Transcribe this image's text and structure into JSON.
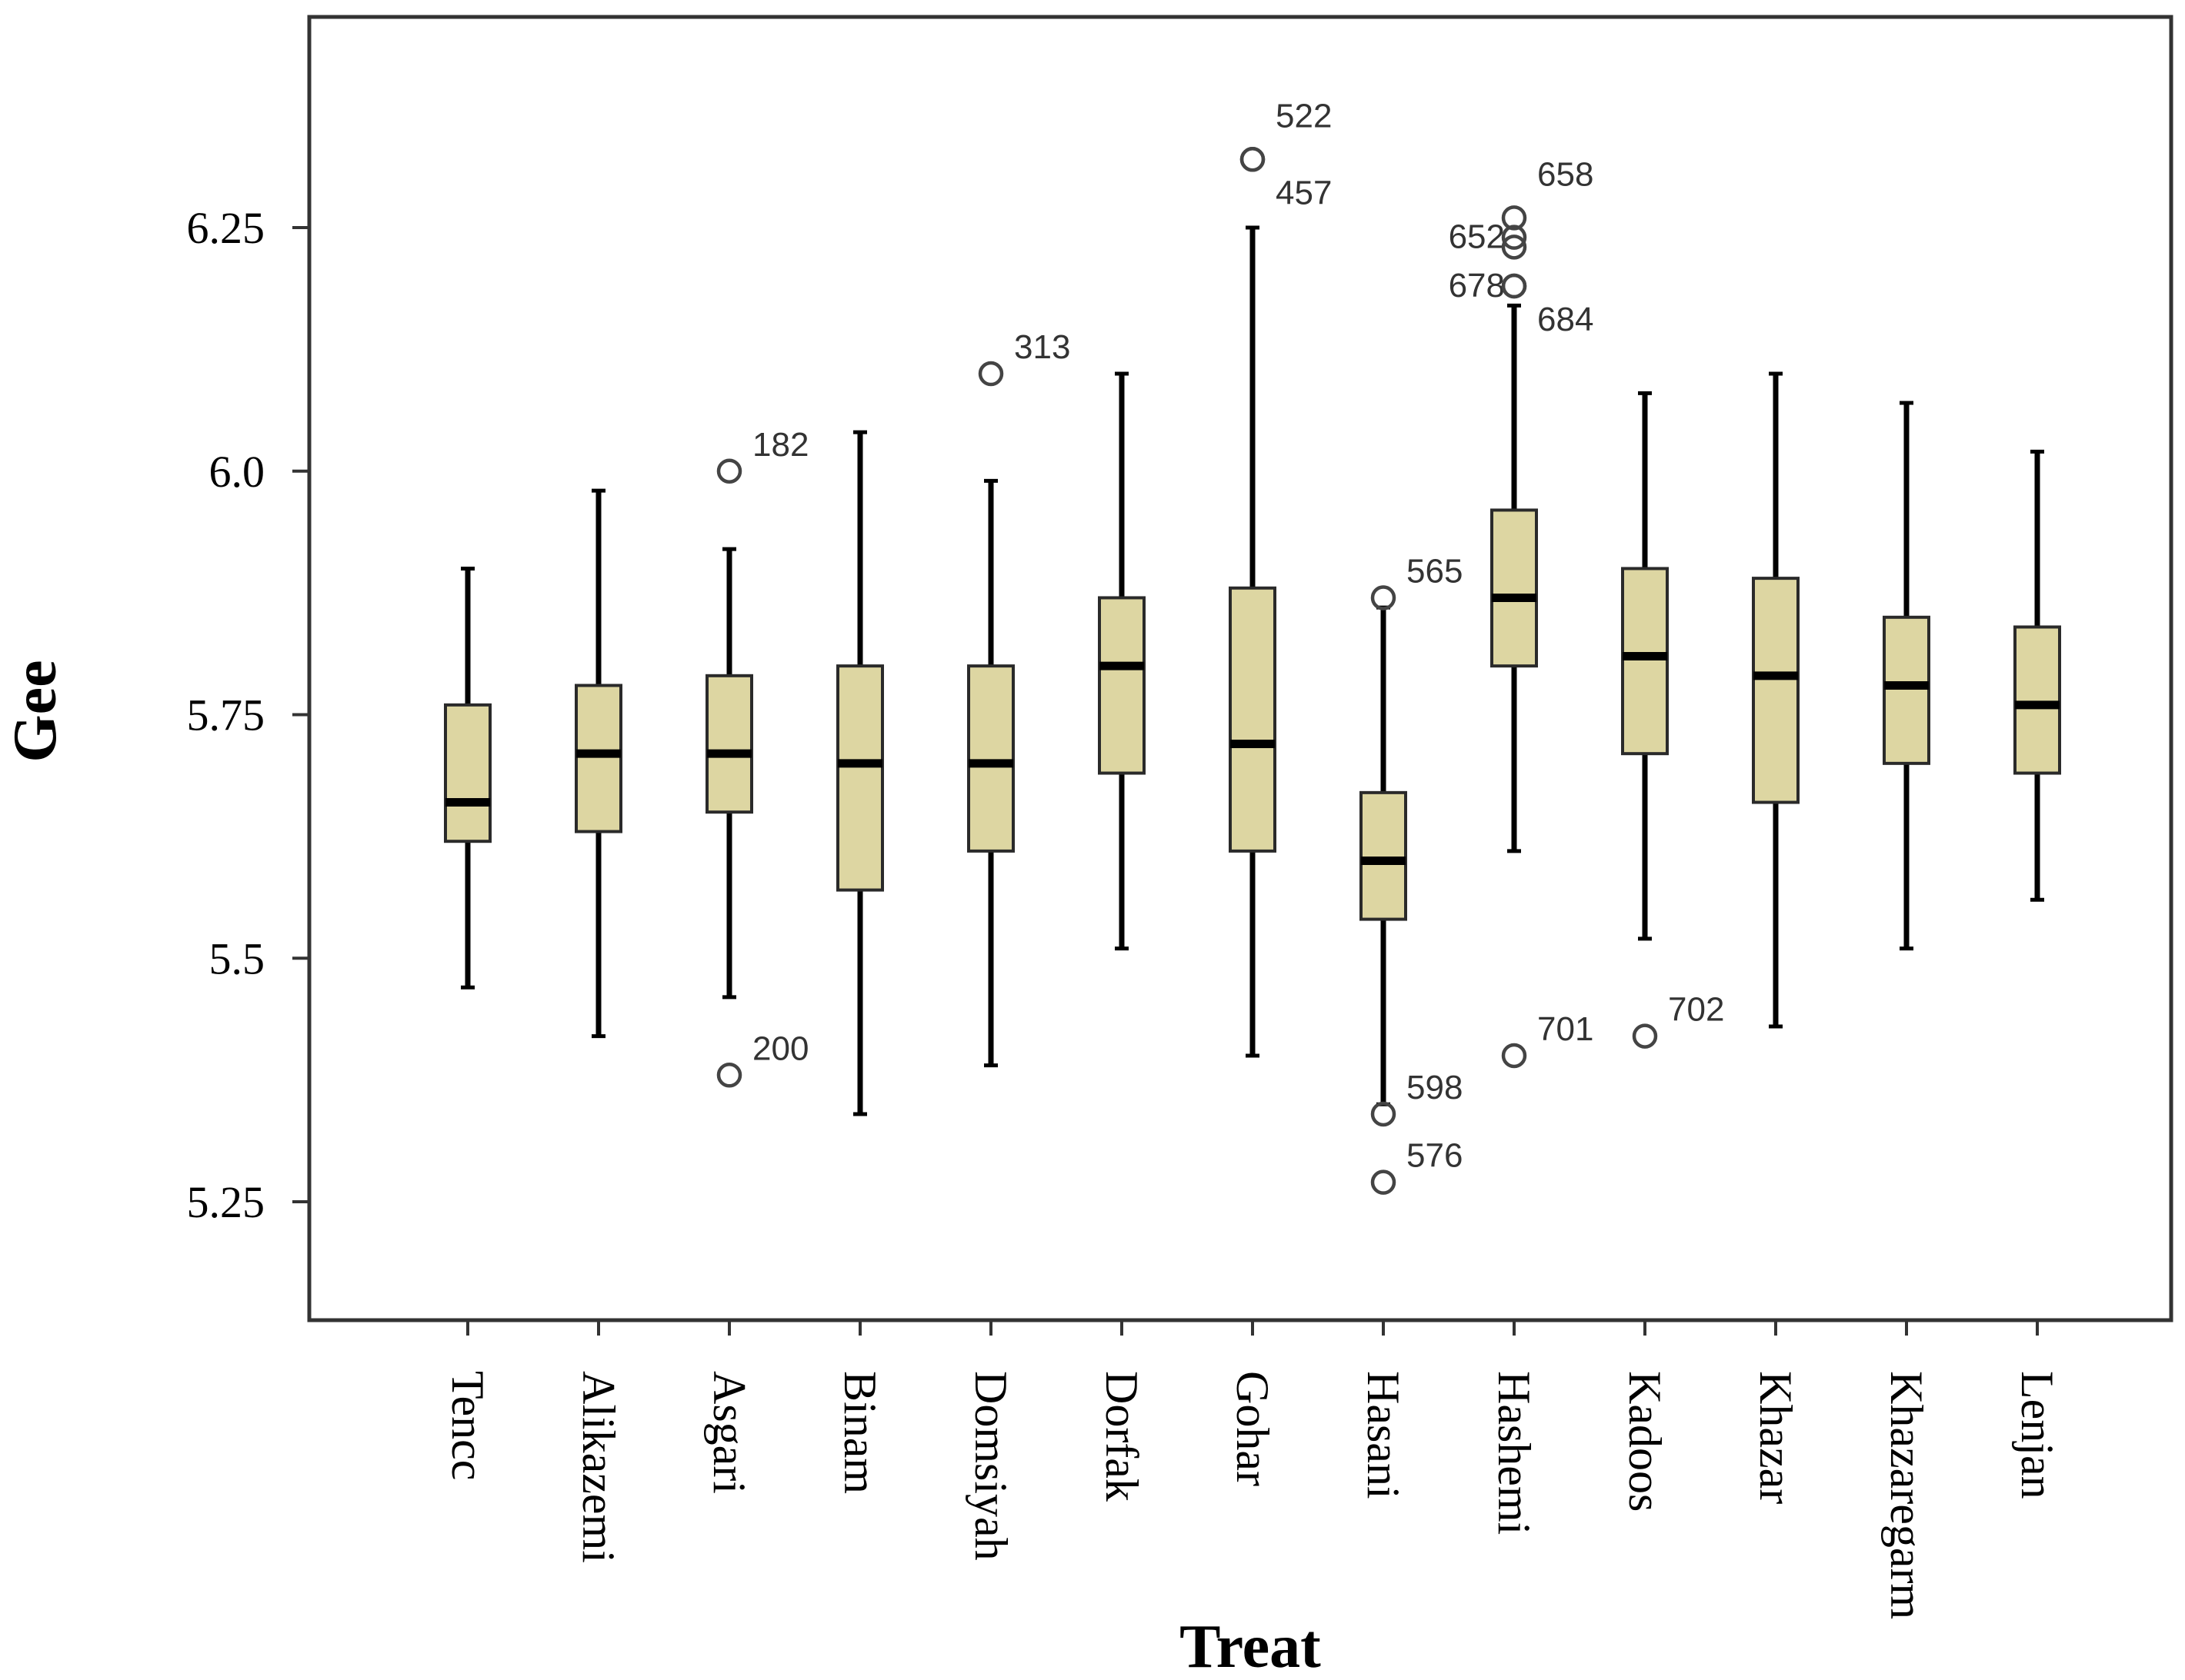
{
  "chart_data": {
    "type": "box",
    "xlabel": "Treat",
    "ylabel": "Gee",
    "ylim": [
      5.12,
      6.46
    ],
    "yticks": [
      5.25,
      5.5,
      5.75,
      6.0,
      6.25
    ],
    "ytick_labels": [
      "5.25",
      "5.5",
      "5.75",
      "6.0",
      "6.25"
    ],
    "categories": [
      "Tencc",
      "Alikazemi",
      "Asgari",
      "Binam",
      "Domsiyah",
      "Dorfak",
      "Gohar",
      "Hasani",
      "Hashemi",
      "Kadoos",
      "Khazar",
      "Khazaregarm",
      "Lenjan"
    ],
    "boxes": [
      {
        "name": "Tencc",
        "whisker_low": 5.47,
        "q1": 5.62,
        "median": 5.66,
        "q3": 5.76,
        "whisker_high": 5.9
      },
      {
        "name": "Alikazemi",
        "whisker_low": 5.42,
        "q1": 5.63,
        "median": 5.71,
        "q3": 5.78,
        "whisker_high": 5.98
      },
      {
        "name": "Asgari",
        "whisker_low": 5.46,
        "q1": 5.65,
        "median": 5.71,
        "q3": 5.79,
        "whisker_high": 5.92
      },
      {
        "name": "Binam",
        "whisker_low": 5.34,
        "q1": 5.57,
        "median": 5.7,
        "q3": 5.8,
        "whisker_high": 6.04
      },
      {
        "name": "Domsiyah",
        "whisker_low": 5.39,
        "q1": 5.61,
        "median": 5.7,
        "q3": 5.8,
        "whisker_high": 5.99
      },
      {
        "name": "Dorfak",
        "whisker_low": 5.51,
        "q1": 5.69,
        "median": 5.8,
        "q3": 5.87,
        "whisker_high": 6.1
      },
      {
        "name": "Gohar",
        "whisker_low": 5.4,
        "q1": 5.61,
        "median": 5.72,
        "q3": 5.88,
        "whisker_high": 6.25
      },
      {
        "name": "Hasani",
        "whisker_low": 5.35,
        "q1": 5.54,
        "median": 5.6,
        "q3": 5.67,
        "whisker_high": 5.86
      },
      {
        "name": "Hashemi",
        "whisker_low": 5.61,
        "q1": 5.8,
        "median": 5.87,
        "q3": 5.96,
        "whisker_high": 6.17
      },
      {
        "name": "Kadoos",
        "whisker_low": 5.52,
        "q1": 5.71,
        "median": 5.81,
        "q3": 5.9,
        "whisker_high": 6.08
      },
      {
        "name": "Khazar",
        "whisker_low": 5.43,
        "q1": 5.66,
        "median": 5.79,
        "q3": 5.89,
        "whisker_high": 6.1
      },
      {
        "name": "Khazaregarm",
        "whisker_low": 5.51,
        "q1": 5.7,
        "median": 5.78,
        "q3": 5.85,
        "whisker_high": 6.07
      },
      {
        "name": "Lenjan",
        "whisker_low": 5.56,
        "q1": 5.69,
        "median": 5.76,
        "q3": 5.84,
        "whisker_high": 6.02
      }
    ],
    "outliers": [
      {
        "category": "Asgari",
        "value": 6.0,
        "label": "182",
        "label_side": "right"
      },
      {
        "category": "Asgari",
        "value": 5.38,
        "label": "200",
        "label_side": "right"
      },
      {
        "category": "Domsiyah",
        "value": 6.1,
        "label": "313",
        "label_side": "right"
      },
      {
        "category": "Gohar",
        "value": 6.32,
        "label": "522",
        "label_side": "right-up"
      },
      {
        "category": "Gohar",
        "value": 6.32,
        "label": "457",
        "label_side": "right-down"
      },
      {
        "category": "Hasani",
        "value": 5.87,
        "label": "565",
        "label_side": "right"
      },
      {
        "category": "Hasani",
        "value": 5.34,
        "label": "598",
        "label_side": "right"
      },
      {
        "category": "Hasani",
        "value": 5.27,
        "label": "576",
        "label_side": "right"
      },
      {
        "category": "Hashemi",
        "value": 6.26,
        "label": "658",
        "label_side": "right-up"
      },
      {
        "category": "Hashemi",
        "value": 6.24,
        "label": "652",
        "label_side": "left"
      },
      {
        "category": "Hashemi",
        "value": 6.23,
        "label": "",
        "label_side": "none"
      },
      {
        "category": "Hashemi",
        "value": 6.19,
        "label": "678",
        "label_side": "left"
      },
      {
        "category": "Hashemi",
        "value": 6.19,
        "label": "684",
        "label_side": "right-down"
      },
      {
        "category": "Hashemi",
        "value": 5.4,
        "label": "701",
        "label_side": "right"
      },
      {
        "category": "Kadoos",
        "value": 5.42,
        "label": "702",
        "label_side": "right"
      }
    ]
  }
}
